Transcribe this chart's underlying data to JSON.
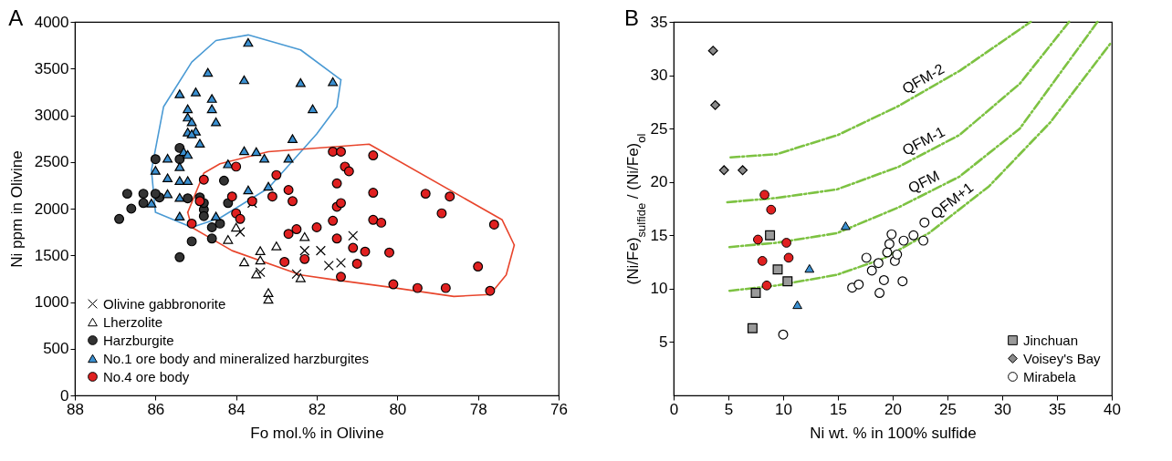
{
  "chart_data": [
    {
      "type": "scatter",
      "title": "A",
      "xlabel": "Fo mol.% in Olivine",
      "ylabel": "Ni ppm in Olivine",
      "xlim": [
        88,
        76
      ],
      "xticks": [
        88,
        86,
        84,
        82,
        80,
        78,
        76
      ],
      "ylim": [
        0,
        4000
      ],
      "yticks": [
        0,
        500,
        1000,
        1500,
        2000,
        2500,
        3000,
        3500,
        4000
      ],
      "grid": false,
      "legend": "bottom left",
      "series": [
        {
          "type": "line",
          "color": "#4a9ad4",
          "line_style": "solid",
          "x": [
            86.1,
            85.8,
            85.1,
            84.5,
            83.7,
            82.4,
            81.4
          ],
          "values": [
            2410,
            3090,
            3570,
            3800,
            3860,
            3700,
            3380
          ]
        },
        {
          "type": "line",
          "color": "#4a9ad4",
          "line_style": "solid",
          "x": [
            86.1,
            86.0,
            85.1,
            84.4,
            83.2,
            82.0,
            81.5,
            81.4
          ],
          "values": [
            2410,
            1960,
            1800,
            1900,
            2220,
            2800,
            3090,
            3380
          ]
        },
        {
          "type": "line",
          "color": "#e8452c",
          "line_style": "solid",
          "x": [
            85.2,
            84.8,
            84.4,
            83.2,
            80.7,
            77.4,
            77.1
          ],
          "values": [
            1960,
            2380,
            2480,
            2610,
            2690,
            1880,
            1610
          ]
        },
        {
          "type": "line",
          "color": "#e8452c",
          "line_style": "solid",
          "x": [
            85.2,
            85.1,
            84.1,
            82.4,
            81.6,
            80.2,
            78.6,
            77.7,
            77.3,
            77.1
          ],
          "values": [
            1960,
            1800,
            1550,
            1290,
            1240,
            1160,
            1060,
            1080,
            1290,
            1610
          ]
        },
        {
          "name": "Olivine gabbronorite",
          "marker": "cross",
          "color": "#000000",
          "x": [
            83.9,
            83.6,
            83.4,
            82.5,
            82.3,
            81.9,
            81.7,
            81.4,
            81.1
          ],
          "values": [
            1750,
            2060,
            1320,
            1300,
            1550,
            1550,
            1390,
            1420,
            1710
          ]
        },
        {
          "name": "Lherzolite",
          "marker": "triangle",
          "color": "#ffffff",
          "x": [
            84.0,
            84.2,
            83.0,
            82.3,
            83.4,
            83.8,
            83.4,
            83.5,
            83.2,
            83.2,
            82.4
          ],
          "values": [
            1800,
            1670,
            1600,
            1700,
            1550,
            1430,
            1450,
            1300,
            1100,
            1030,
            1260
          ]
        },
        {
          "name": "Harzburgite",
          "marker": "circle",
          "color": "#333333",
          "x": [
            86.7,
            86.6,
            86.9,
            86.3,
            86.3,
            86.0,
            85.9,
            85.4,
            85.4,
            85.2,
            84.9,
            84.8,
            84.8,
            84.3,
            84.2,
            84.6,
            84.4,
            84.6,
            85.1,
            85.4,
            86.0,
            84.8
          ],
          "values": [
            2160,
            2000,
            1890,
            2160,
            2060,
            2530,
            2120,
            2650,
            2530,
            2110,
            2120,
            1990,
            1920,
            2300,
            2060,
            1800,
            1840,
            1680,
            1650,
            1480,
            2160,
            2060
          ]
        },
        {
          "name": "No.1 ore body and mineralized harzburgites",
          "marker": "triangle",
          "color": "#3a8fd0",
          "x": [
            83.7,
            84.7,
            83.8,
            82.4,
            81.6,
            85.4,
            85.0,
            84.6,
            85.2,
            84.6,
            82.1,
            84.5,
            85.2,
            85.1,
            85.2,
            85.0,
            84.9,
            85.1,
            82.6,
            83.8,
            83.5,
            83.3,
            82.7,
            84.2,
            85.7,
            85.3,
            85.2,
            85.4,
            86.0,
            85.7,
            85.4,
            85.2,
            85.7,
            85.4,
            86.1,
            83.7,
            83.2,
            85.4,
            84.5
          ],
          "values": [
            3780,
            3460,
            3380,
            3350,
            3360,
            3230,
            3250,
            3180,
            3070,
            3070,
            3070,
            2930,
            2980,
            2930,
            2820,
            2830,
            2700,
            2800,
            2750,
            2620,
            2610,
            2540,
            2540,
            2480,
            2540,
            2610,
            2580,
            2450,
            2410,
            2330,
            2300,
            2300,
            2160,
            2120,
            2060,
            2200,
            2240,
            1920,
            1920
          ]
        },
        {
          "name": "No.4 ore body",
          "marker": "circle",
          "color": "#e02020",
          "x": [
            84.0,
            84.8,
            84.9,
            85.1,
            84.1,
            83.6,
            83.1,
            83.0,
            82.7,
            82.6,
            84.0,
            83.9,
            82.7,
            82.5,
            82.0,
            81.6,
            81.5,
            81.4,
            81.5,
            81.6,
            81.4,
            81.3,
            81.2,
            81.5,
            81.1,
            80.8,
            81.0,
            81.4,
            82.8,
            82.3,
            80.6,
            80.6,
            79.3,
            78.7,
            78.9,
            80.6,
            80.4,
            77.6,
            80.2,
            78.0,
            80.1,
            79.5,
            78.8,
            77.7
          ],
          "values": [
            2450,
            2310,
            2080,
            1840,
            2130,
            2080,
            2130,
            2360,
            2200,
            2080,
            1950,
            1890,
            1730,
            1780,
            1800,
            1870,
            2020,
            2060,
            2270,
            2610,
            2610,
            2450,
            2400,
            1680,
            1580,
            1540,
            1410,
            1270,
            1430,
            1460,
            2570,
            2170,
            2160,
            2130,
            1950,
            1880,
            1850,
            1830,
            1530,
            1380,
            1190,
            1150,
            1150,
            1120
          ]
        }
      ]
    },
    {
      "type": "scatter",
      "title": "B",
      "xlabel": "Ni wt. % in 100% sulfide",
      "ylabel": "(Ni/Fe)$_{sulfide}$ / (Ni/Fe)$_{ol}$",
      "xlim": [
        0,
        40
      ],
      "xticks": [
        0,
        5,
        10,
        15,
        20,
        25,
        30,
        35,
        40
      ],
      "ylim": [
        0,
        35
      ],
      "yticks": [
        5,
        10,
        15,
        20,
        25,
        30,
        35
      ],
      "grid": false,
      "legend": "bottom right",
      "series": [
        {
          "name": "QFM-2",
          "type": "line",
          "color": "#7dc242",
          "line_style": "dashed",
          "x": [
            5.2,
            9.4,
            15.0,
            20.5,
            26.1,
            32.6
          ],
          "values": [
            22.3,
            22.6,
            24.4,
            27.1,
            30.4,
            35
          ]
        },
        {
          "name": "QFM-1",
          "type": "line",
          "color": "#7dc242",
          "line_style": "dashed",
          "x": [
            4.9,
            9.4,
            14.9,
            20.5,
            26.1,
            31.6,
            36.1
          ],
          "values": [
            18.1,
            18.5,
            19.3,
            21.4,
            24.4,
            29.2,
            35
          ]
        },
        {
          "name": "QFM",
          "type": "line",
          "color": "#7dc242",
          "line_style": "dashed",
          "x": [
            5.1,
            9.4,
            14.9,
            20.5,
            26.1,
            31.6,
            38.7
          ],
          "values": [
            13.9,
            14.3,
            15.2,
            17.6,
            20.5,
            25.0,
            35
          ]
        },
        {
          "name": "QFM+1",
          "type": "line",
          "color": "#7dc242",
          "line_style": "dashed",
          "x": [
            5.1,
            9.4,
            14.9,
            19.1,
            23.3,
            28.8,
            34.4,
            39.9
          ],
          "values": [
            9.8,
            10.3,
            11.3,
            12.8,
            15.2,
            19.6,
            25.6,
            33.0
          ]
        },
        {
          "name": "Jinchuan",
          "marker": "square",
          "color": "#9a9a9a",
          "x": [
            8.8,
            9.5,
            10.4,
            7.5,
            7.2
          ],
          "values": [
            15.0,
            11.8,
            10.7,
            9.6,
            6.3
          ]
        },
        {
          "name": "Voisey's Bay",
          "marker": "diamond",
          "color": "#8a8a8a",
          "x": [
            3.6,
            3.8,
            4.6,
            6.3
          ],
          "values": [
            32.3,
            27.2,
            21.1,
            21.1
          ]
        },
        {
          "name": "Mirabela",
          "marker": "circle",
          "color": "#ffffff",
          "x": [
            10.0,
            16.3,
            16.9,
            17.6,
            18.1,
            18.7,
            18.8,
            19.2,
            19.5,
            19.7,
            19.9,
            20.2,
            20.4,
            20.9,
            21.0,
            21.9,
            22.8,
            22.9
          ],
          "values": [
            5.7,
            10.1,
            10.4,
            12.9,
            11.7,
            12.4,
            9.6,
            10.8,
            13.4,
            14.2,
            15.1,
            12.6,
            13.2,
            10.7,
            14.5,
            15.0,
            14.5,
            16.2
          ]
        },
        {
          "marker": "circle",
          "color": "#e02020",
          "x": [
            8.3,
            8.9,
            7.7,
            10.3,
            8.1,
            10.5,
            8.5
          ],
          "values": [
            18.8,
            17.4,
            14.6,
            14.3,
            12.6,
            12.9,
            10.3
          ]
        },
        {
          "marker": "triangle",
          "color": "#3a8fd0",
          "x": [
            15.7,
            12.4,
            11.3
          ],
          "values": [
            15.9,
            11.9,
            8.5
          ]
        }
      ]
    }
  ]
}
